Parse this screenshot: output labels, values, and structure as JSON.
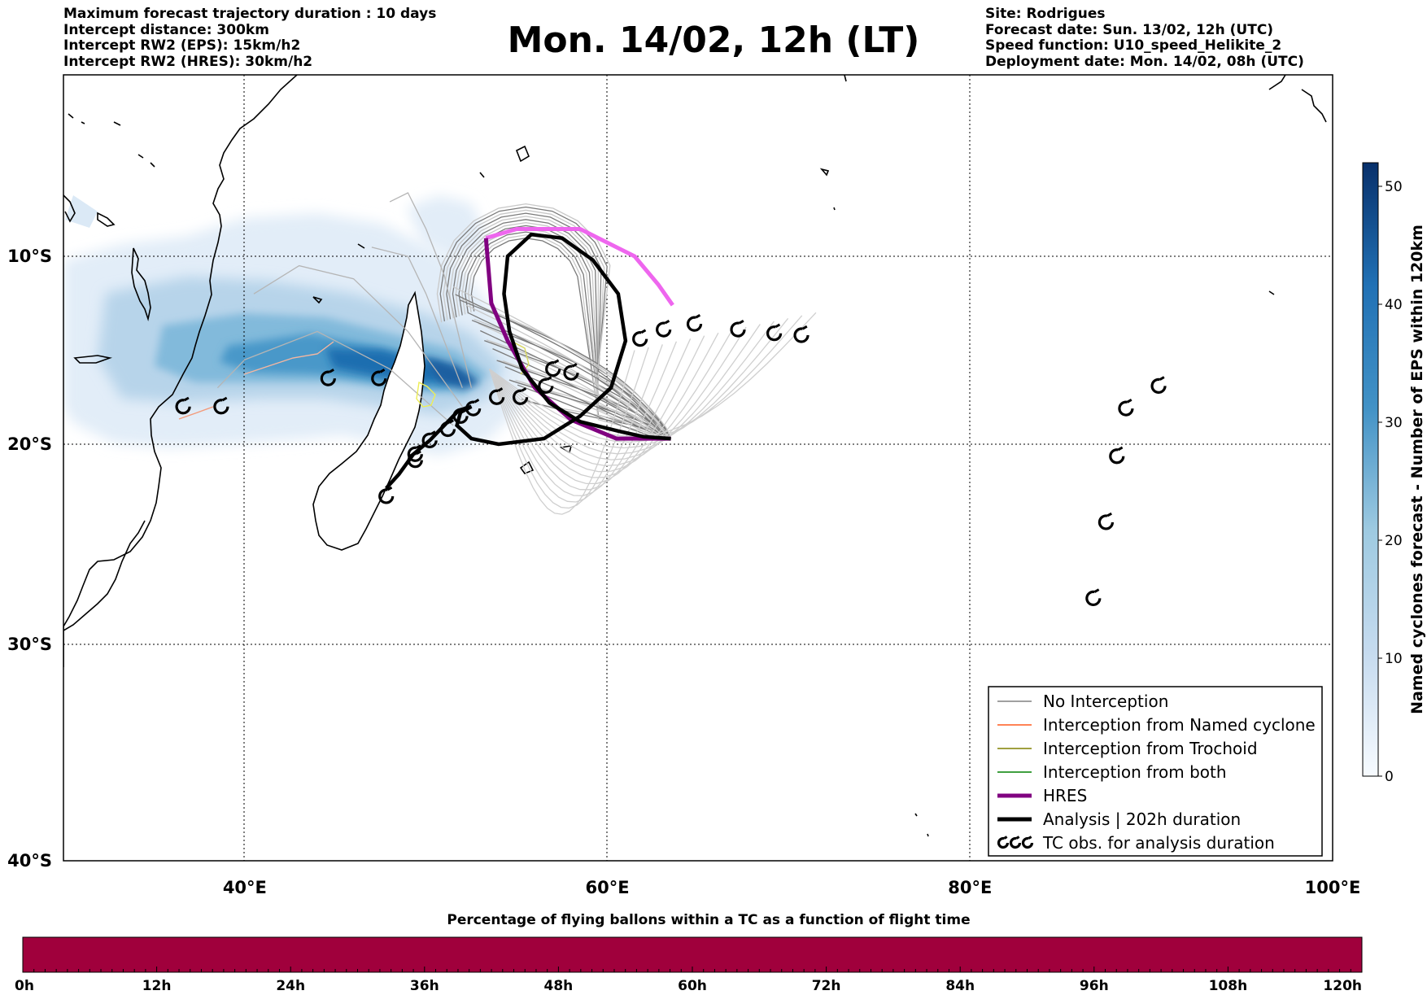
{
  "header_left": [
    "Maximum forecast trajectory duration : 10 days",
    "Intercept distance: 300km",
    "Intercept RW2 (EPS):  15km/h2",
    "Intercept RW2 (HRES): 30km/h2"
  ],
  "title": "Mon. 14/02, 12h (LT)",
  "header_right": [
    "Site: Rodrigues",
    "Forecast date: Sun. 13/02, 12h (UTC)",
    "Speed function: U10_speed_Helikite_2",
    "Deployment date: Mon. 14/02, 08h (UTC)"
  ],
  "map": {
    "lon_range": [
      30,
      100
    ],
    "lat_range": [
      -40,
      0
    ],
    "lon_ticks": [
      {
        "lon": 40,
        "label": "40°E"
      },
      {
        "lon": 60,
        "label": "60°E"
      },
      {
        "lon": 80,
        "label": "80°E"
      },
      {
        "lon": 100,
        "label": "100°E"
      }
    ],
    "lat_ticks": [
      {
        "lat": -10,
        "label": "10°S"
      },
      {
        "lat": -20,
        "label": "20°S"
      },
      {
        "lat": -30,
        "label": "30°S"
      },
      {
        "lat": -40,
        "label": "40°S"
      }
    ],
    "gridlines": "dotted"
  },
  "colorbar": {
    "label": "Named cyclones forecast - Number of EPS within 120km",
    "ticks": [
      0,
      10,
      20,
      30,
      40,
      50
    ],
    "range": [
      0,
      52
    ],
    "colormap": "Blues"
  },
  "legend": {
    "items": [
      {
        "label": "No Interception",
        "color": "#808080",
        "kind": "thin"
      },
      {
        "label": "Interception from Named cyclone",
        "color": "#ff5a1f",
        "kind": "thin"
      },
      {
        "label": "Interception from Trochoid",
        "color": "#808000",
        "kind": "thin"
      },
      {
        "label": "Interception from both",
        "color": "#008000",
        "kind": "thin"
      },
      {
        "label": "HRES",
        "color": "#800080",
        "kind": "thick"
      },
      {
        "label": "Analysis | 202h duration",
        "color": "#000000",
        "kind": "thick"
      },
      {
        "label": "TC obs. for analysis duration",
        "color": "#000000",
        "kind": "cyclone-symbols"
      }
    ]
  },
  "tracks": {
    "hres": [
      [
        53.3,
        -9
      ],
      [
        55,
        -8.5
      ],
      [
        58.5,
        -8.5
      ],
      [
        61.5,
        -10
      ],
      [
        62.8,
        -11.5
      ],
      [
        63.6,
        -12.6
      ]
    ],
    "hres_dark": [
      [
        53.3,
        -9
      ],
      [
        53.6,
        -12.5
      ],
      [
        54.5,
        -14.5
      ],
      [
        56,
        -17
      ],
      [
        58,
        -18.7
      ],
      [
        60.5,
        -19.7
      ],
      [
        63.5,
        -19.7
      ]
    ],
    "analysis": [
      [
        63.5,
        -19.7
      ],
      [
        62,
        -19.6
      ],
      [
        60.6,
        -19.3
      ],
      [
        58.5,
        -18.8
      ],
      [
        56.8,
        -17.8
      ],
      [
        55.3,
        -16
      ],
      [
        54.6,
        -14
      ],
      [
        54.3,
        -12
      ],
      [
        54.5,
        -10
      ],
      [
        55.8,
        -8.8
      ],
      [
        57.5,
        -9
      ],
      [
        59.2,
        -10.2
      ],
      [
        60.6,
        -12
      ],
      [
        61,
        -14.5
      ],
      [
        60.2,
        -17
      ],
      [
        58.5,
        -18.5
      ],
      [
        56.5,
        -19.7
      ],
      [
        54,
        -20
      ],
      [
        52.5,
        -19.7
      ],
      [
        51.7,
        -19
      ],
      [
        51.9,
        -18.3
      ],
      [
        52.5,
        -18
      ],
      [
        51.8,
        -18.2
      ],
      [
        51,
        -19
      ],
      [
        50.2,
        -19.8
      ],
      [
        49.3,
        -20.5
      ],
      [
        48.5,
        -21.5
      ],
      [
        47.8,
        -22.2
      ]
    ],
    "cyclone_obs": [
      [
        36.6,
        -18
      ],
      [
        38.7,
        -18
      ],
      [
        44.6,
        -16.5
      ],
      [
        47.4,
        -16.5
      ],
      [
        47.8,
        -22.6
      ],
      [
        49.4,
        -20.8
      ],
      [
        49.4,
        -20.5
      ],
      [
        50.2,
        -19.8
      ],
      [
        51.2,
        -19.2
      ],
      [
        51.9,
        -18.5
      ],
      [
        52.6,
        -18.1
      ],
      [
        53.9,
        -17.5
      ],
      [
        55.2,
        -17.5
      ],
      [
        56.6,
        -16.9
      ],
      [
        57,
        -16
      ],
      [
        58,
        -16.2
      ],
      [
        61.8,
        -14.4
      ],
      [
        63.1,
        -13.9
      ],
      [
        64.8,
        -13.6
      ],
      [
        67.2,
        -13.9
      ],
      [
        69.2,
        -14.1
      ],
      [
        70.7,
        -14.2
      ],
      [
        86.8,
        -27.7
      ],
      [
        87.5,
        -23.9
      ],
      [
        88.1,
        -20.6
      ],
      [
        88.6,
        -18.1
      ],
      [
        90.4,
        -16.9
      ]
    ]
  },
  "bottom_colorbar": {
    "title": "Percentage of flying ballons within a TC as a function of flight time",
    "ticks": [
      "0h",
      "12h",
      "24h",
      "36h",
      "48h",
      "60h",
      "72h",
      "84h",
      "96h",
      "108h",
      "120h"
    ],
    "fill_color": "#a0003c",
    "fill_fraction": 1.0
  }
}
